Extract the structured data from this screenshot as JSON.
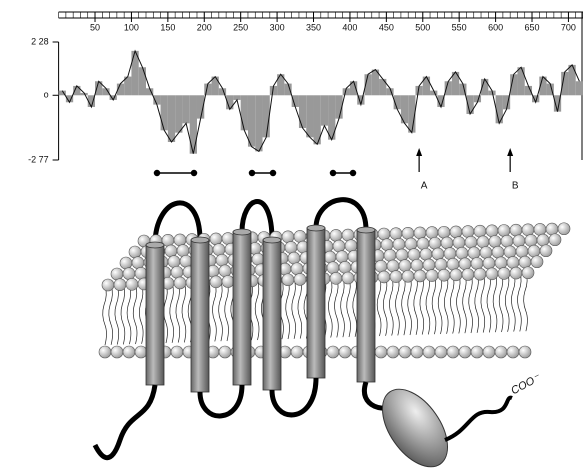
{
  "chart_data": {
    "type": "area",
    "x": [
      5,
      15,
      25,
      35,
      45,
      55,
      65,
      75,
      85,
      95,
      105,
      115,
      125,
      135,
      145,
      155,
      165,
      175,
      185,
      195,
      205,
      215,
      225,
      235,
      245,
      255,
      265,
      275,
      285,
      295,
      305,
      315,
      325,
      335,
      345,
      355,
      365,
      375,
      385,
      395,
      405,
      415,
      425,
      435,
      445,
      455,
      465,
      475,
      485,
      495,
      505,
      515,
      525,
      535,
      545,
      555,
      565,
      575,
      585,
      595,
      605,
      615,
      625,
      635,
      645,
      655,
      665,
      675,
      685,
      695,
      705,
      715
    ],
    "values": [
      0.2,
      -0.3,
      0.4,
      0.1,
      -0.5,
      0.6,
      0.3,
      -0.2,
      0.5,
      0.8,
      1.9,
      1.2,
      0.3,
      -0.4,
      -1.5,
      -2.0,
      -1.6,
      -1.2,
      -2.5,
      -1.0,
      0.5,
      0.8,
      0.3,
      -0.6,
      -0.2,
      -1.5,
      -2.2,
      -2.4,
      -1.8,
      0.4,
      0.9,
      0.5,
      -0.5,
      -1.4,
      -1.8,
      -2.1,
      -1.3,
      -1.9,
      -1.0,
      0.3,
      0.6,
      -0.4,
      0.9,
      1.1,
      0.7,
      0.3,
      -0.6,
      -1.2,
      -1.6,
      0.4,
      0.8,
      0.2,
      -0.5,
      0.6,
      1.0,
      0.5,
      -0.8,
      -0.3,
      0.7,
      0.2,
      -1.2,
      -0.6,
      0.9,
      1.2,
      0.4,
      -0.3,
      0.8,
      0.5,
      -0.7,
      1.0,
      1.3,
      0.6
    ],
    "color": "#999999",
    "xlim": [
      0,
      720
    ],
    "xticks": [
      50,
      100,
      150,
      200,
      250,
      300,
      350,
      400,
      450,
      500,
      550,
      600,
      650,
      700
    ],
    "ylim": [
      -2.77,
      2.28
    ],
    "yticks": [
      {
        "value": 2.28,
        "label": "2 28"
      },
      {
        "value": 0,
        "label": "o"
      },
      {
        "value": -2.77,
        "label": "-2 77"
      }
    ],
    "annotations": [
      {
        "text": "A",
        "x": 495
      },
      {
        "text": "B",
        "x": 620
      }
    ],
    "terminus_label": "COO⁻"
  }
}
